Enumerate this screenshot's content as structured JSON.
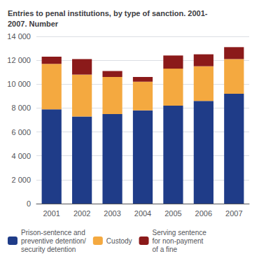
{
  "chart_data": {
    "type": "bar",
    "title": "Entries to penal institutions, by type of sanction. 2001-\n2007. Number",
    "categories": [
      "2001",
      "2002",
      "2003",
      "2004",
      "2005",
      "2006",
      "2007"
    ],
    "series": [
      {
        "name": "Prison-sentence and\npreventive detention/\nsecurity detention",
        "color": "#1f3c88",
        "values": [
          7900,
          7300,
          7500,
          7800,
          8200,
          8600,
          9200
        ]
      },
      {
        "name": "Custody",
        "color": "#f4a940",
        "values": [
          3800,
          3500,
          3100,
          2400,
          3100,
          2900,
          2900
        ]
      },
      {
        "name": "Serving sentence\nfor non-payment\nof a fine",
        "color": "#8b1a1a",
        "values": [
          600,
          1300,
          500,
          400,
          1100,
          1000,
          1000
        ]
      }
    ],
    "stacked": true,
    "ylim": [
      0,
      14000
    ],
    "yticks": [
      0,
      {
        "value": 2000,
        "label": "2 000"
      },
      {
        "value": 4000,
        "label": "4 000"
      },
      {
        "value": 6000,
        "label": "6 000"
      },
      {
        "value": 8000,
        "label": "8 000"
      },
      {
        "value": 10000,
        "label": "10 000"
      },
      {
        "value": 12000,
        "label": "12 000"
      },
      {
        "value": 14000,
        "label": "14 000"
      }
    ],
    "grid": true,
    "legend": "lower left"
  }
}
